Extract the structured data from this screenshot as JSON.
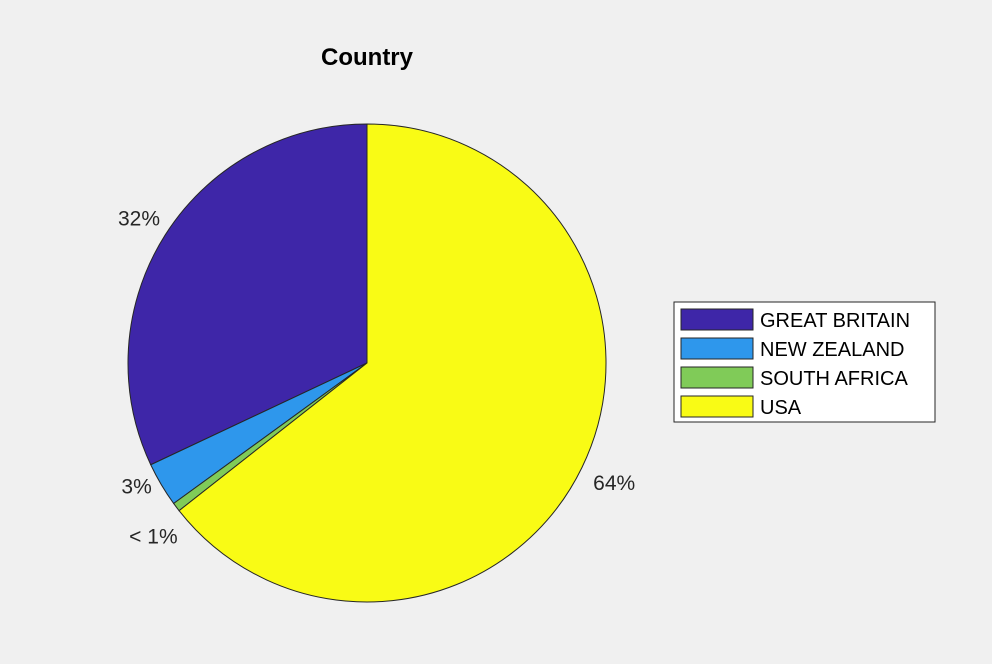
{
  "chart_data": {
    "type": "pie",
    "title": "Country",
    "categories": [
      "GREAT BRITAIN",
      "NEW ZEALAND",
      "SOUTH AFRICA",
      "USA"
    ],
    "values": [
      32,
      3,
      0.6,
      64.4
    ],
    "labels": [
      "32%",
      "3%",
      "< 1%",
      "64%"
    ],
    "colors": [
      "#3e26a8",
      "#2e97ec",
      "#80cb58",
      "#f9fb15"
    ],
    "legend": {
      "position": "right",
      "entries": [
        "GREAT BRITAIN",
        "NEW ZEALAND",
        "SOUTH AFRICA",
        "USA"
      ]
    }
  }
}
